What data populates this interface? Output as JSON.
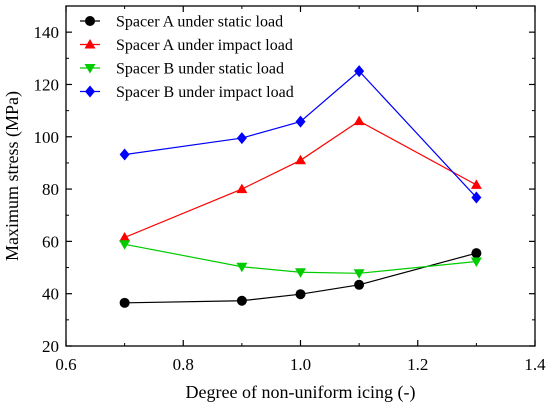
{
  "chart_data": {
    "type": "line",
    "xlabel": "Degree of non-uniform icing (-)",
    "ylabel": "Maximum stress (MPa)",
    "xlim": [
      0.6,
      1.4
    ],
    "ylim": [
      20,
      150
    ],
    "xticks": [
      0.6,
      0.8,
      1.0,
      1.2,
      1.4
    ],
    "xtick_labels": [
      "0.6",
      "0.8",
      "1.0",
      "1.2",
      "1.4"
    ],
    "yticks": [
      20,
      40,
      60,
      80,
      100,
      120,
      140
    ],
    "ytick_labels": [
      "20",
      "40",
      "60",
      "80",
      "100",
      "120",
      "140"
    ],
    "grid": false,
    "legend_position": "top-left",
    "x": [
      0.7,
      0.9,
      1.0,
      1.1,
      1.3
    ],
    "series": [
      {
        "name": "Spacer A under static load",
        "values": [
          36.5,
          37.3,
          39.8,
          43.4,
          55.5
        ],
        "color": "#000000",
        "marker": "circle"
      },
      {
        "name": "Spacer A under impact load",
        "values": [
          61.5,
          80.0,
          91.0,
          106.0,
          81.6
        ],
        "color": "#ff0000",
        "marker": "triangle-up"
      },
      {
        "name": "Spacer B under static load",
        "values": [
          58.9,
          50.3,
          48.2,
          47.8,
          52.3
        ],
        "color": "#00cc00",
        "marker": "triangle-down"
      },
      {
        "name": "Spacer B under impact load",
        "values": [
          93.2,
          99.5,
          105.8,
          125.1,
          76.8
        ],
        "color": "#0000ff",
        "marker": "diamond"
      }
    ]
  }
}
